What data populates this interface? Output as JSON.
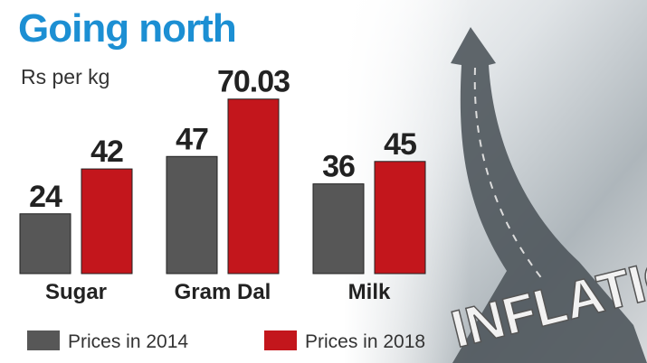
{
  "chart_data": {
    "type": "bar",
    "title": "Going north",
    "subtitle": "Rs per kg",
    "categories": [
      "Sugar",
      "Gram Dal",
      "Milk"
    ],
    "series": [
      {
        "name": "Prices in 2014",
        "color": "#575757",
        "values": [
          24,
          47,
          36
        ]
      },
      {
        "name": "Prices in 2018",
        "color": "#c3161c",
        "values": [
          42,
          70.03,
          45
        ]
      }
    ],
    "image_text": "INFLATION"
  }
}
